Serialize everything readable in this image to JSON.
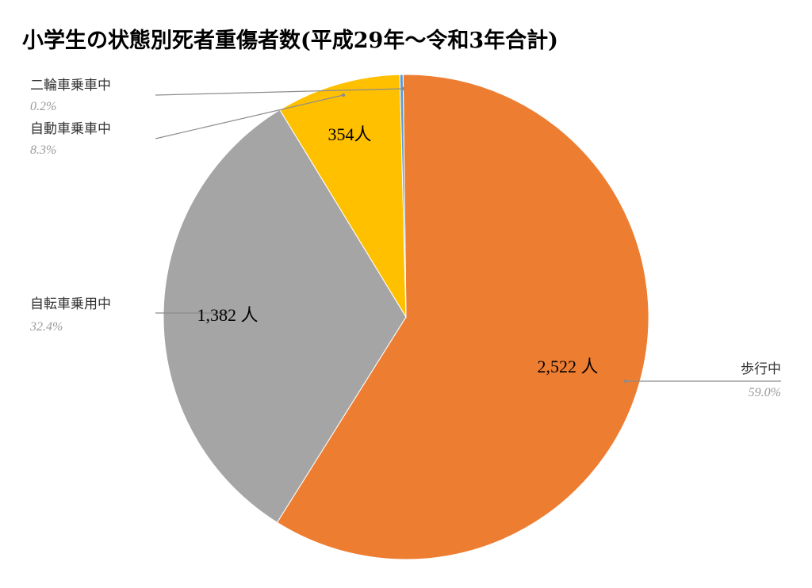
{
  "chart_data": {
    "type": "pie",
    "title": "小学生の状態別死者重傷者数(平成29年～令和3年合計)",
    "slices": [
      {
        "label": "歩行中",
        "value": 2522,
        "value_label": "2,522 人",
        "percent_label": "59.0%",
        "color": "#ED7D31"
      },
      {
        "label": "自転車乗用中",
        "value": 1382,
        "value_label": "1,382 人",
        "percent_label": "32.4%",
        "color": "#A5A5A5"
      },
      {
        "label": "自動車乗車中",
        "value": 354,
        "value_label": "354人",
        "percent_label": "8.3%",
        "color": "#FFC000"
      },
      {
        "label": "二輪車乗車中",
        "value": 9,
        "value_label": "",
        "percent_label": "0.2%",
        "color": "#5B9BD5"
      }
    ],
    "legend": "none"
  }
}
